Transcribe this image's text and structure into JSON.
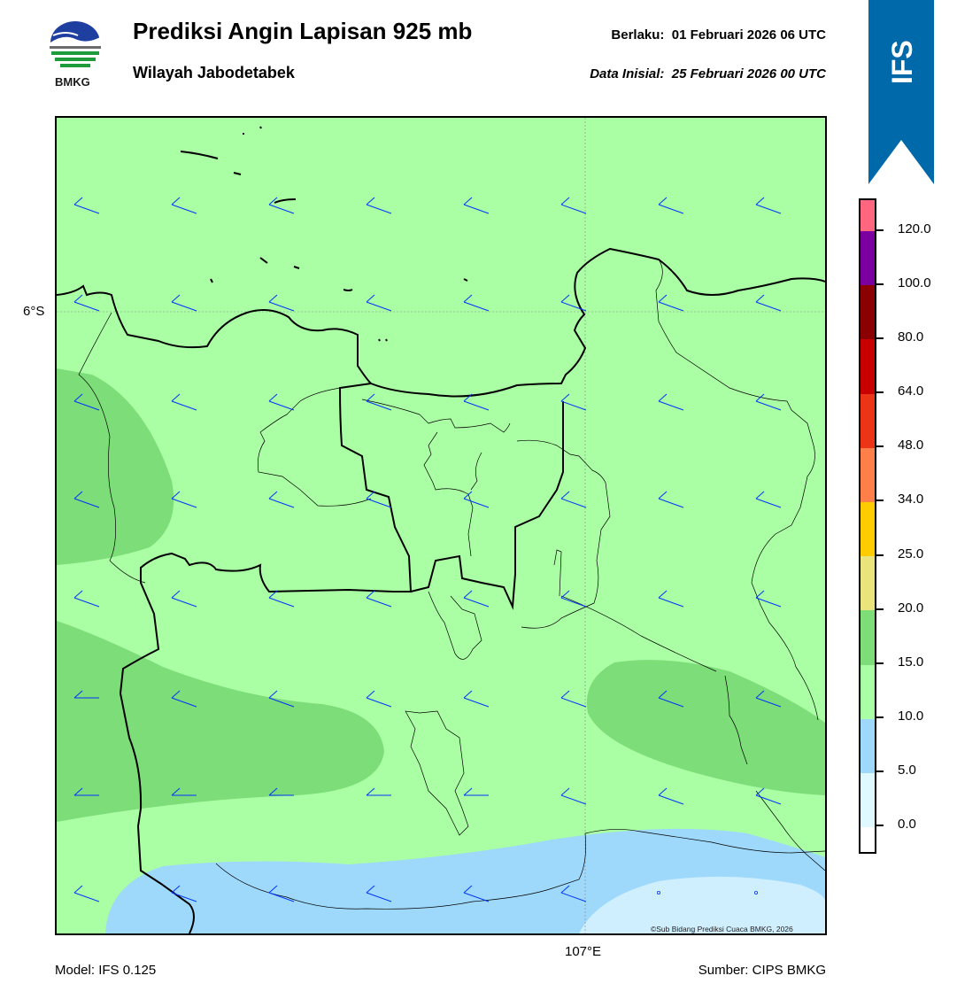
{
  "header": {
    "title": "Prediksi Angin Lapisan 925 mb",
    "subtitle": "Wilayah Jabodetabek",
    "valid_label": "Berlaku:  01 Februari 2026 06 UTC",
    "init_label": "Data Inisial:  25 Februari 2026 00 UTC"
  },
  "logo": {
    "text": "BMKG",
    "icon": "bmkg-logo"
  },
  "model_badge": {
    "text": "IFS",
    "color": "#0069aa"
  },
  "map": {
    "lat_label": "6°S",
    "lon_label": "107°E",
    "copyright": "©Sub Bidang Prediksi Cuaca BMKG, 2026",
    "base_color": "#aaffa4",
    "barb_color": "#0033ff"
  },
  "colorbar": {
    "ticks": [
      "0.0",
      "5.0",
      "10.0",
      "15.0",
      "20.0",
      "25.0",
      "34.0",
      "48.0",
      "64.0",
      "80.0",
      "100.0",
      "120.0"
    ],
    "colors": [
      "#ffffff",
      "#e0f8ff",
      "#9ed9fb",
      "#aaffa4",
      "#7ddd78",
      "#ebe37b",
      "#ffcc00",
      "#ff7f4b",
      "#ec3517",
      "#c80000",
      "#8b0000",
      "#7b00a0",
      "#ff6680"
    ]
  },
  "footer": {
    "model": "Model: IFS 0.125",
    "source": "Sumber: CIPS BMKG"
  }
}
